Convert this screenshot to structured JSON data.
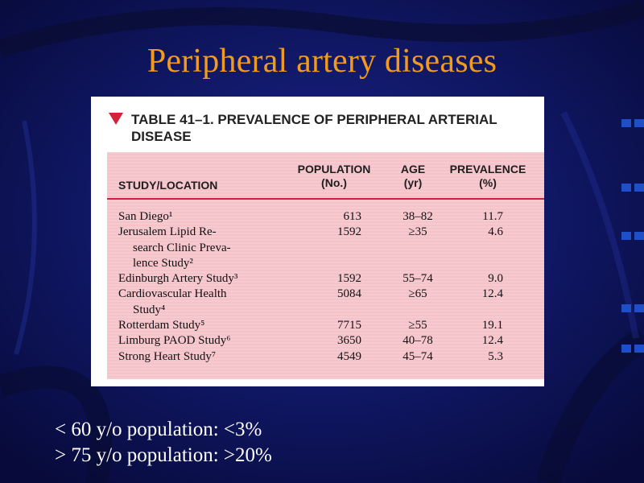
{
  "slide": {
    "title": "Peripheral artery diseases",
    "colors": {
      "background": "#0b0f4a",
      "title": "#f29a1d",
      "table_band": "#f4c2c8",
      "accent_red": "#d11e3c"
    }
  },
  "table": {
    "marker_icon": "red-triangle-icon",
    "title_line1": "TABLE 41–1. PREVALENCE OF PERIPHERAL ARTERIAL",
    "title_line2": "DISEASE",
    "headers": {
      "study": "STUDY/LOCATION",
      "population_1": "POPULATION",
      "population_2": "(No.)",
      "age_1": "AGE",
      "age_2": "(yr)",
      "prevalence_1": "PREVALENCE",
      "prevalence_2": "(%)"
    },
    "rows": [
      {
        "study": [
          "San Diego¹"
        ],
        "population": "613",
        "age": "38–82",
        "prevalence": "11.7"
      },
      {
        "study": [
          "Jerusalem Lipid Re-",
          "search Clinic Preva-",
          "lence Study²"
        ],
        "population": "1592",
        "age": "≥35",
        "prevalence": "4.6"
      },
      {
        "study": [
          "Edinburgh Artery Study³"
        ],
        "population": "1592",
        "age": "55–74",
        "prevalence": "9.0"
      },
      {
        "study": [
          "Cardiovascular Health",
          "Study⁴"
        ],
        "population": "5084",
        "age": "≥65",
        "prevalence": "12.4"
      },
      {
        "study": [
          "Rotterdam Study⁵"
        ],
        "population": "7715",
        "age": "≥55",
        "prevalence": "19.1"
      },
      {
        "study": [
          "Limburg PAOD Study⁶"
        ],
        "population": "3650",
        "age": "40–78",
        "prevalence": "12.4"
      },
      {
        "study": [
          "Strong Heart Study⁷"
        ],
        "population": "4549",
        "age": "45–74",
        "prevalence": "5.3"
      }
    ]
  },
  "notes": [
    "< 60 y/o population: <3%",
    "> 75 y/o population: >20%"
  ]
}
